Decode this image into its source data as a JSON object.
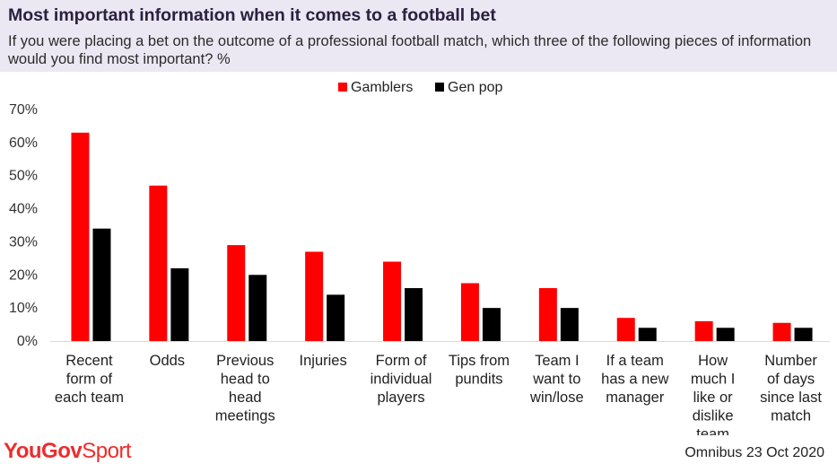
{
  "header": {
    "title": "Most important information when it comes to a football bet",
    "subtitle": "If you were placing a bet on the outcome of a professional football match, which three of the following pieces of information would you find most important? %"
  },
  "chart_data": {
    "type": "bar",
    "categories": [
      [
        "Recent",
        "form of",
        "each team"
      ],
      [
        "Odds"
      ],
      [
        "Previous",
        "head to",
        "head",
        "meetings"
      ],
      [
        "Injuries"
      ],
      [
        "Form of",
        "individual",
        "players"
      ],
      [
        "Tips from",
        "pundits"
      ],
      [
        "Team I",
        "want to",
        "win/lose"
      ],
      [
        "If a team",
        "has a new",
        "manager"
      ],
      [
        "How",
        "much I",
        "like or",
        "dislike",
        "team"
      ],
      [
        "Number",
        "of days",
        "since last",
        "match"
      ]
    ],
    "series": [
      {
        "name": "Gamblers",
        "color": "#ff0000",
        "values": [
          63,
          47,
          29,
          27,
          24,
          17.5,
          16,
          7,
          6,
          5.5
        ]
      },
      {
        "name": "Gen pop",
        "color": "#000000",
        "values": [
          34,
          22,
          20,
          14,
          16,
          10,
          10,
          4,
          4,
          4
        ]
      }
    ],
    "ylim": [
      0,
      70
    ],
    "yticks": [
      "0%",
      "10%",
      "20%",
      "30%",
      "40%",
      "50%",
      "60%",
      "70%"
    ],
    "ytick_values": [
      0,
      10,
      20,
      30,
      40,
      50,
      60,
      70
    ],
    "grid": false,
    "legend": "top-center"
  },
  "footer": {
    "logo_text_a": "YouGov",
    "logo_text_b": "Sport",
    "source": "Omnibus 23 Oct 2020"
  }
}
